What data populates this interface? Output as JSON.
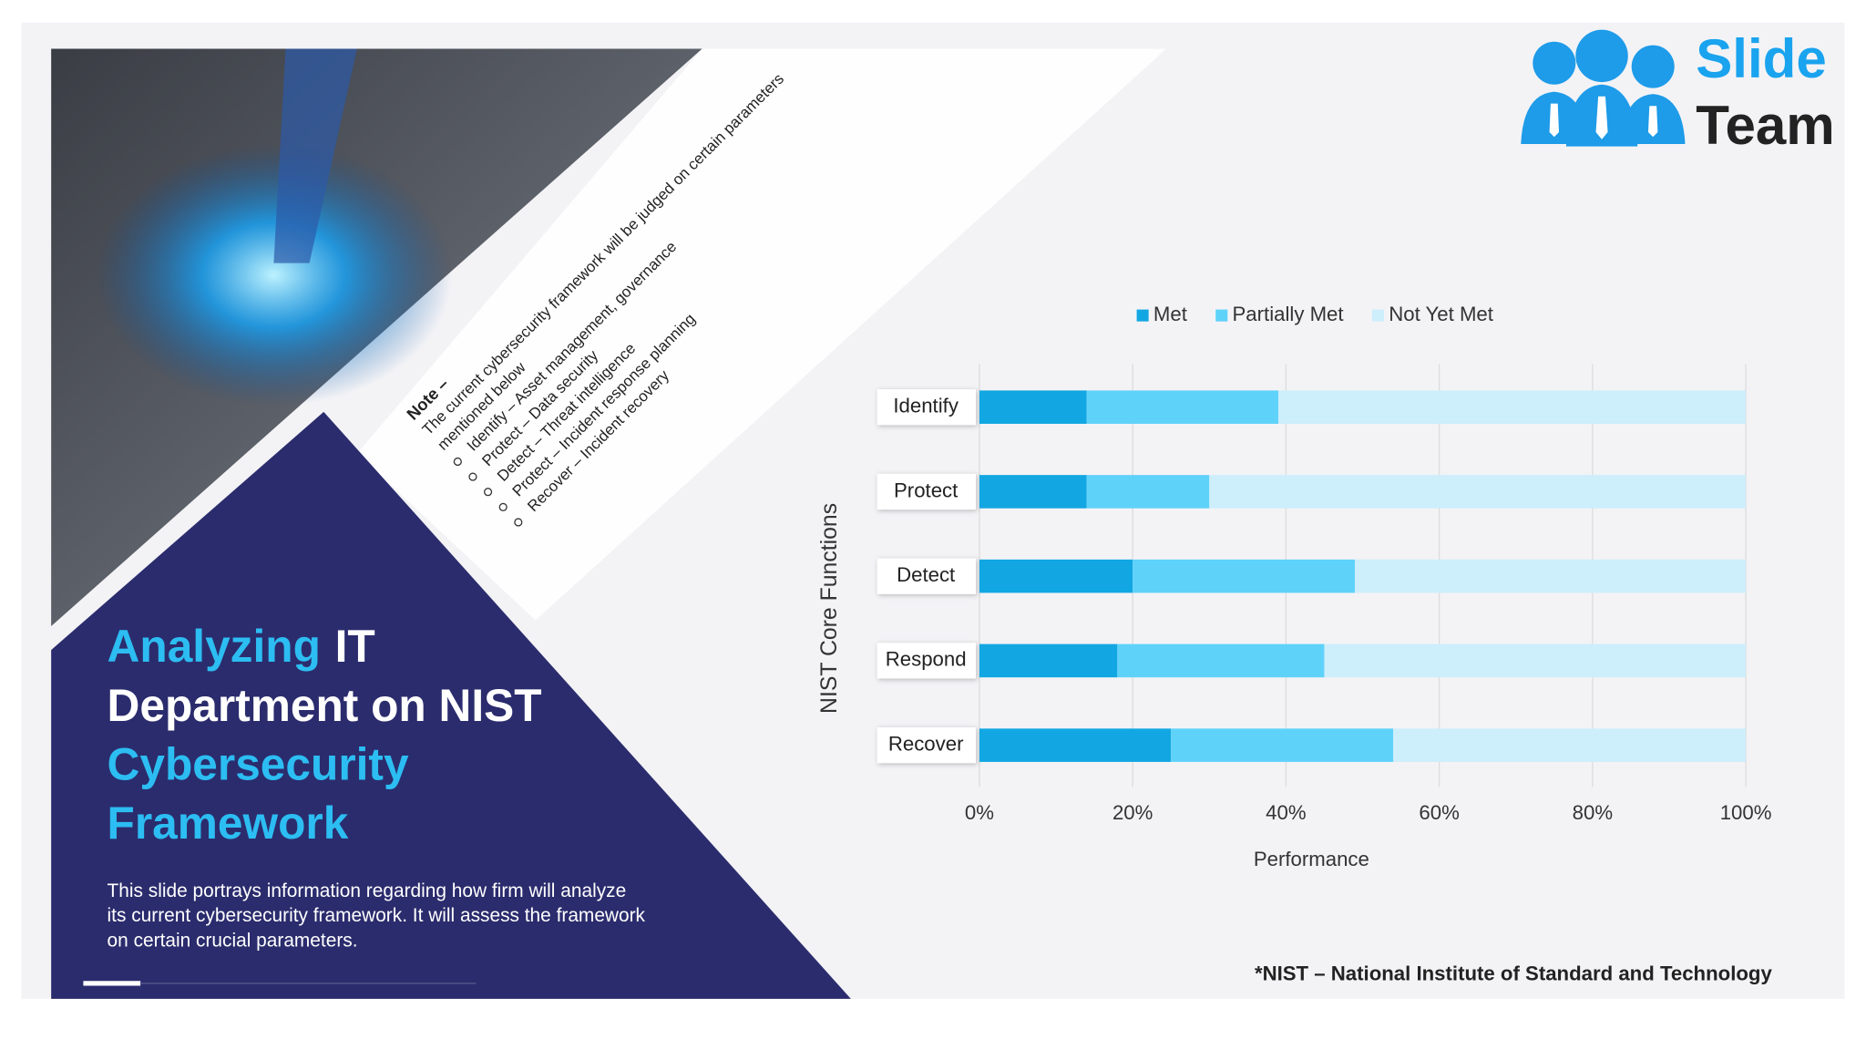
{
  "slide": {
    "title_lines": [
      [
        {
          "text": "Analyzing",
          "accent": true
        },
        {
          "text": "IT",
          "accent": false
        }
      ],
      [
        {
          "text": "Department on NIST",
          "accent": false
        }
      ],
      [
        {
          "text": "Cybersecurity",
          "accent": true
        }
      ],
      [
        {
          "text": "Framework",
          "accent": true
        }
      ]
    ],
    "description_lines": [
      "This slide portrays information regarding how firm will analyze",
      "its current cybersecurity framework. It will assess the framework",
      "on certain crucial parameters."
    ],
    "note": {
      "heading": "Note –",
      "lines": [
        "The current cybersecurity framework will be judged on certain parameters",
        "mentioned below"
      ],
      "bullets": [
        "Identify – Asset management, governance",
        "Protect – Data security",
        "Detect – Threat intelligence",
        "Protect – Incident response planning",
        "Recover – Incident recovery"
      ]
    },
    "logo": {
      "top": "Slide",
      "bottom": "Team"
    },
    "footnote": "*NIST – National Institute of Standard and Technology"
  },
  "chart_data": {
    "type": "bar",
    "horizontal": true,
    "stacked": true,
    "categories": [
      "Identify",
      "Protect",
      "Detect",
      "Respond",
      "Recover"
    ],
    "series": [
      {
        "name": "Met",
        "color": "#12a7e2",
        "values": [
          14,
          14,
          20,
          18,
          25
        ]
      },
      {
        "name": "Partially Met",
        "color": "#5fd2fa",
        "values": [
          25,
          16,
          29,
          27,
          29
        ]
      },
      {
        "name": "Not Yet Met",
        "color": "#cdeefb",
        "values": [
          61,
          70,
          51,
          55,
          46
        ]
      }
    ],
    "xlim": [
      0,
      100
    ],
    "xticks": [
      {
        "value": 0,
        "label": "0%"
      },
      {
        "value": 20,
        "label": "20%"
      },
      {
        "value": 40,
        "label": "40%"
      },
      {
        "value": 60,
        "label": "60%"
      },
      {
        "value": 80,
        "label": "80%"
      },
      {
        "value": 100,
        "label": "100%"
      }
    ],
    "xlabel": "Performance",
    "ylabel": "NIST Core Functions",
    "legend": "top",
    "grid": true
  }
}
